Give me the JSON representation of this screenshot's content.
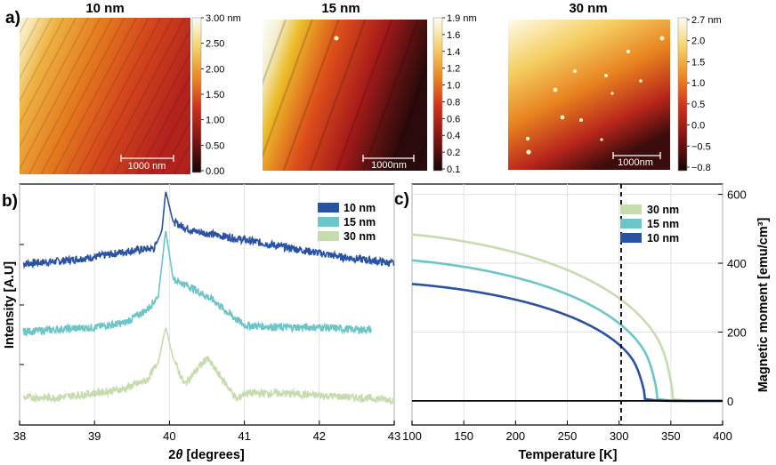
{
  "figure": {
    "panel_a": {
      "label": "a)",
      "afm_images": [
        {
          "title": "10 nm",
          "scale_bar": "1000 nm",
          "colorbar_ticks": [
            "3.00 nm",
            "2.50",
            "2.00",
            "1.50",
            "1.00",
            "0.50",
            "0.00"
          ],
          "range": [
            0,
            3.0
          ]
        },
        {
          "title": "15 nm",
          "scale_bar": "1000nm",
          "colorbar_ticks": [
            "1.9 nm",
            "1.6",
            "1.4",
            "1.2",
            "1.0",
            "0.8",
            "0.6",
            "0.4",
            "0.2",
            "0.1"
          ],
          "range": [
            0.1,
            1.9
          ]
        },
        {
          "title": "30 nm",
          "scale_bar": "1000nm",
          "colorbar_ticks": [
            "2.7 nm",
            "2.0",
            "1.5",
            "1.0",
            "0.5",
            "0.0",
            "−0.5",
            "−0.8"
          ],
          "range": [
            -0.8,
            2.7
          ]
        }
      ]
    },
    "colors": {
      "c10": "#2a52a3",
      "c15": "#6cc5c7",
      "c30": "#c7dcae",
      "dashed": "#000000"
    }
  },
  "chart_data": [
    {
      "type": "line",
      "panel_label": "b)",
      "xlabel_main": "2",
      "xlabel_theta": "θ",
      "xlabel_rest": " [degrees]",
      "ylabel": "Intensity [A.U]",
      "xlim": [
        38,
        43
      ],
      "xticks": [
        "38",
        "39",
        "40",
        "41",
        "42",
        "43"
      ],
      "legend": [
        "10 nm",
        "15 nm",
        "30 nm"
      ],
      "series": [
        {
          "name": "10 nm",
          "x": [
            38.05,
            38.5,
            39.0,
            39.5,
            39.8,
            39.9,
            39.95,
            40.05,
            40.3,
            40.8,
            41.3,
            41.8,
            42.3,
            42.8,
            43.0
          ],
          "values": [
            0.67,
            0.68,
            0.7,
            0.73,
            0.74,
            0.82,
            1.0,
            0.86,
            0.82,
            0.79,
            0.76,
            0.73,
            0.7,
            0.68,
            0.67
          ]
        },
        {
          "name": "15 nm",
          "x": [
            38.05,
            38.5,
            39.0,
            39.4,
            39.7,
            39.85,
            39.95,
            40.05,
            40.3,
            40.6,
            40.8,
            41.0,
            41.5,
            42.0,
            42.5,
            42.7
          ],
          "values": [
            0.36,
            0.37,
            0.38,
            0.4,
            0.46,
            0.52,
            0.82,
            0.6,
            0.56,
            0.5,
            0.44,
            0.39,
            0.38,
            0.38,
            0.37,
            0.37
          ]
        },
        {
          "name": "30 nm",
          "x": [
            38.05,
            38.5,
            39.0,
            39.4,
            39.7,
            39.85,
            39.95,
            40.05,
            40.2,
            40.5,
            40.8,
            40.9,
            41.0,
            41.5,
            42.0,
            42.5,
            43.0
          ],
          "values": [
            0.06,
            0.06,
            0.08,
            0.1,
            0.14,
            0.22,
            0.38,
            0.24,
            0.12,
            0.24,
            0.1,
            0.05,
            0.08,
            0.08,
            0.07,
            0.06,
            0.05
          ]
        }
      ]
    },
    {
      "type": "line",
      "panel_label": "c)",
      "xlabel": "Temperature [K]",
      "ylabel": "Magnetic moment [emu/cm³]",
      "xlim": [
        100,
        400
      ],
      "ylim": [
        -70,
        630
      ],
      "xticks": [
        "100",
        "150",
        "200",
        "250",
        "300",
        "350",
        "400"
      ],
      "yticks": [
        "0",
        "200",
        "400",
        "600"
      ],
      "dashed_line_x": 302,
      "legend": [
        "30 nm",
        "15 nm",
        "10 nm"
      ],
      "series": [
        {
          "name": "30 nm",
          "Tc": 352,
          "m0": 497,
          "x": [
            100,
            150,
            200,
            250,
            300,
            325,
            340,
            350,
            360,
            400
          ],
          "values": [
            490,
            470,
            435,
            380,
            285,
            195,
            110,
            38,
            5,
            0
          ]
        },
        {
          "name": "15 nm",
          "Tc": 337,
          "m0": 421,
          "x": [
            100,
            150,
            200,
            250,
            300,
            315,
            325,
            335,
            345,
            400
          ],
          "values": [
            412,
            392,
            355,
            300,
            200,
            130,
            70,
            18,
            2,
            0
          ]
        },
        {
          "name": "10 nm",
          "Tc": 325,
          "m0": 351,
          "x": [
            100,
            150,
            200,
            250,
            300,
            310,
            318,
            325,
            335,
            400
          ],
          "values": [
            343,
            322,
            290,
            235,
            138,
            90,
            45,
            12,
            1,
            0
          ]
        }
      ]
    }
  ]
}
